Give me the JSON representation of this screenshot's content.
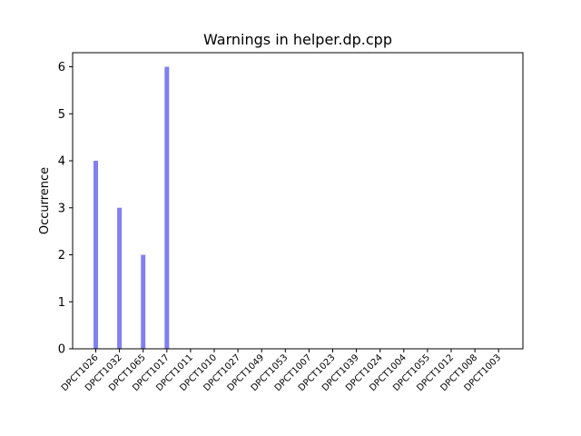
{
  "chart_data": {
    "type": "bar",
    "title": "Warnings in helper.dp.cpp",
    "xlabel": "",
    "ylabel": "Occurrence",
    "categories": [
      "DPCT1026",
      "DPCT1032",
      "DPCT1065",
      "DPCT1017",
      "DPCT1011",
      "DPCT1010",
      "DPCT1027",
      "DPCT1049",
      "DPCT1053",
      "DPCT1007",
      "DPCT1023",
      "DPCT1039",
      "DPCT1024",
      "DPCT1004",
      "DPCT1055",
      "DPCT1012",
      "DPCT1008",
      "DPCT1003"
    ],
    "values": [
      4,
      3,
      2,
      6,
      0,
      0,
      0,
      0,
      0,
      0,
      0,
      0,
      0,
      0,
      0,
      0,
      0,
      0
    ],
    "ylim": [
      0,
      6.3
    ],
    "yticks": [
      "0",
      "1",
      "2",
      "3",
      "4",
      "5",
      "6"
    ],
    "bar_color": "#8080f0",
    "grid": false,
    "legend": "none"
  }
}
